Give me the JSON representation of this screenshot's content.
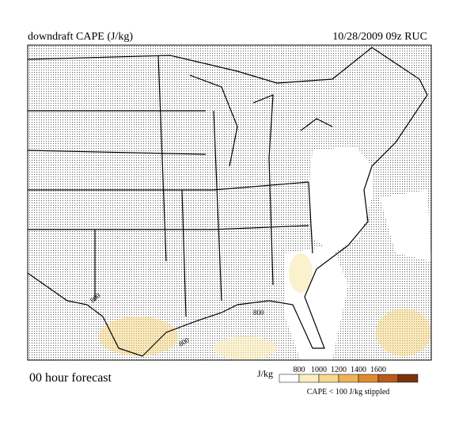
{
  "header": {
    "title": "downdraft CAPE (J/kg)",
    "valid": "10/28/2009  09z  RUC"
  },
  "footer": {
    "forecast": "00 hour forecast",
    "note": "CAPE < 100 J/kg stippled"
  },
  "legend": {
    "unit": "J/kg",
    "ticks": [
      800,
      1000,
      1200,
      1400,
      1600
    ],
    "colors": [
      "#ffffff",
      "#fbeec0",
      "#f6d98c",
      "#eeb25a",
      "#de8a32",
      "#b85a1c",
      "#7a3510"
    ]
  },
  "map": {
    "contour_labels": [
      "800",
      "800",
      "800"
    ]
  }
}
